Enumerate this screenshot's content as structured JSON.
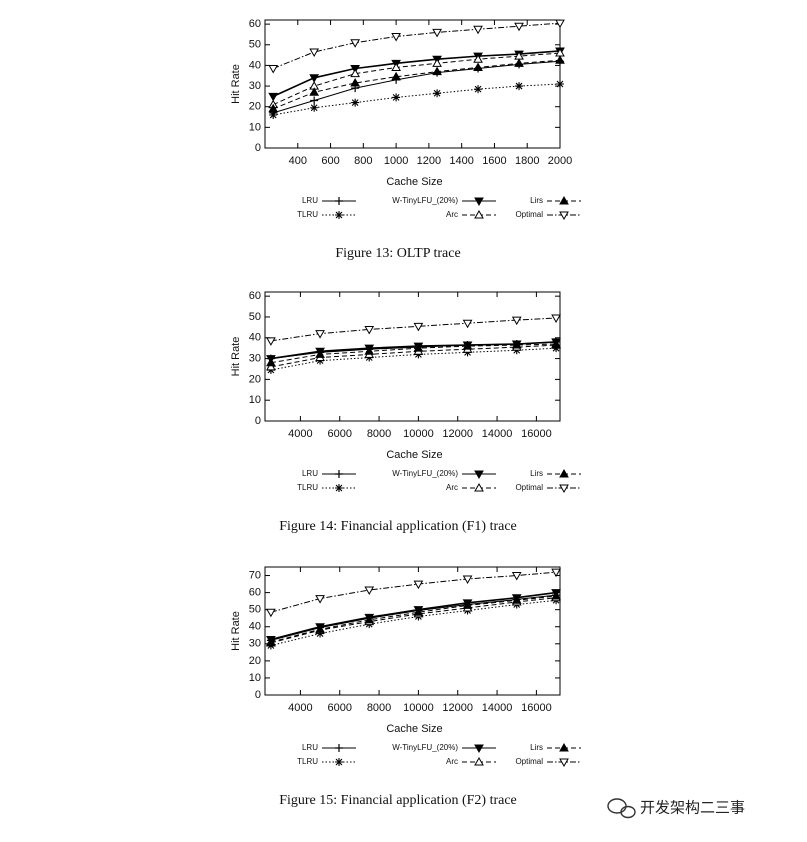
{
  "chart_data": [
    {
      "type": "line",
      "caption": "Figure 13: OLTP trace",
      "xlabel": "Cache Size",
      "ylabel": "Hit Rate",
      "x": [
        250,
        500,
        750,
        1000,
        1250,
        1500,
        1750,
        2000
      ],
      "xlim": [
        200,
        2000
      ],
      "xticks": [
        400,
        600,
        800,
        1000,
        1200,
        1400,
        1600,
        1800,
        2000
      ],
      "ylim": [
        0,
        62
      ],
      "yticks": [
        0,
        10,
        20,
        30,
        40,
        50,
        60
      ],
      "series": [
        {
          "name": "LRU",
          "color": "#000000",
          "marker": "plus",
          "line_style": "solid",
          "values": [
            17,
            23,
            29,
            33,
            36.5,
            38.5,
            40.5,
            42
          ]
        },
        {
          "name": "TLRU",
          "color": "#000000",
          "marker": "star",
          "line_style": "dotted",
          "values": [
            16,
            19.5,
            22,
            24.5,
            26.5,
            28.5,
            30,
            31
          ]
        },
        {
          "name": "W-TinyLFU_(20%)",
          "color": "#000000",
          "marker": "filled-down",
          "line_style": "solid",
          "values": [
            25,
            34,
            38.5,
            41,
            43,
            44.5,
            45.5,
            47
          ]
        },
        {
          "name": "Arc",
          "color": "#000000",
          "marker": "open-up",
          "line_style": "dashed",
          "values": [
            21,
            30,
            36,
            39,
            41,
            43,
            44.5,
            46
          ]
        },
        {
          "name": "Lirs",
          "color": "#000000",
          "marker": "filled-up",
          "line_style": "dashed",
          "values": [
            19,
            27,
            31.5,
            34.5,
            37,
            39,
            41,
            42.5
          ]
        },
        {
          "name": "Optimal",
          "color": "#000000",
          "marker": "open-down",
          "line_style": "dashdot",
          "values": [
            38.5,
            46.5,
            51,
            54,
            56,
            57.5,
            59,
            60.5
          ]
        }
      ]
    },
    {
      "type": "line",
      "caption": "Figure 14: Financial application (F1) trace",
      "xlabel": "Cache Size",
      "ylabel": "Hit Rate",
      "x": [
        2500,
        5000,
        7500,
        10000,
        12500,
        15000,
        17000
      ],
      "xlim": [
        2200,
        17200
      ],
      "xticks": [
        4000,
        6000,
        8000,
        10000,
        12000,
        14000,
        16000
      ],
      "ylim": [
        0,
        62
      ],
      "yticks": [
        0,
        10,
        20,
        30,
        40,
        50,
        60
      ],
      "series": [
        {
          "name": "LRU",
          "color": "#000000",
          "marker": "plus",
          "line_style": "solid",
          "values": [
            30,
            33,
            34.5,
            35.5,
            36.5,
            37,
            38
          ]
        },
        {
          "name": "TLRU",
          "color": "#000000",
          "marker": "star",
          "line_style": "dotted",
          "values": [
            24.5,
            29,
            30.5,
            32,
            33,
            34,
            35
          ]
        },
        {
          "name": "W-TinyLFU_(20%)",
          "color": "#000000",
          "marker": "filled-down",
          "line_style": "solid",
          "values": [
            30,
            33.5,
            35,
            36,
            36.5,
            37,
            38
          ]
        },
        {
          "name": "Arc",
          "color": "#000000",
          "marker": "open-up",
          "line_style": "dashed",
          "values": [
            26,
            30.5,
            32,
            33.5,
            34.5,
            35.5,
            36.5
          ]
        },
        {
          "name": "Lirs",
          "color": "#000000",
          "marker": "filled-up",
          "line_style": "dashed",
          "values": [
            28,
            32,
            33.5,
            35,
            36,
            36.5,
            37
          ]
        },
        {
          "name": "Optimal",
          "color": "#000000",
          "marker": "open-down",
          "line_style": "dashdot",
          "values": [
            38.5,
            42,
            44,
            45.5,
            47,
            48.5,
            49.5
          ]
        }
      ]
    },
    {
      "type": "line",
      "caption": "Figure 15: Financial application (F2) trace",
      "xlabel": "Cache Size",
      "ylabel": "Hit Rate",
      "x": [
        2500,
        5000,
        7500,
        10000,
        12500,
        15000,
        17000
      ],
      "xlim": [
        2200,
        17200
      ],
      "xticks": [
        4000,
        6000,
        8000,
        10000,
        12000,
        14000,
        16000
      ],
      "ylim": [
        0,
        75
      ],
      "yticks": [
        0,
        10,
        20,
        30,
        40,
        50,
        60,
        70
      ],
      "series": [
        {
          "name": "LRU",
          "color": "#000000",
          "marker": "plus",
          "line_style": "solid",
          "values": [
            32,
            39.5,
            45,
            49.5,
            53,
            56,
            58.5
          ]
        },
        {
          "name": "TLRU",
          "color": "#000000",
          "marker": "star",
          "line_style": "dotted",
          "values": [
            29,
            36,
            41.5,
            46,
            49.5,
            53,
            55.5
          ]
        },
        {
          "name": "W-TinyLFU_(20%)",
          "color": "#000000",
          "marker": "filled-down",
          "line_style": "solid",
          "values": [
            32.5,
            40,
            45.5,
            50,
            54,
            57,
            60
          ]
        },
        {
          "name": "Arc",
          "color": "#000000",
          "marker": "open-up",
          "line_style": "dashed",
          "values": [
            30.5,
            38,
            43,
            47.5,
            51,
            54.5,
            57
          ]
        },
        {
          "name": "Lirs",
          "color": "#000000",
          "marker": "filled-up",
          "line_style": "dashed",
          "values": [
            31,
            38.5,
            44,
            48.5,
            52.5,
            55.5,
            58
          ]
        },
        {
          "name": "Optimal",
          "color": "#000000",
          "marker": "open-down",
          "line_style": "dashdot",
          "values": [
            48.5,
            56.5,
            61.5,
            65,
            68,
            70,
            72
          ]
        }
      ]
    }
  ],
  "watermark": "开发架构二三事"
}
